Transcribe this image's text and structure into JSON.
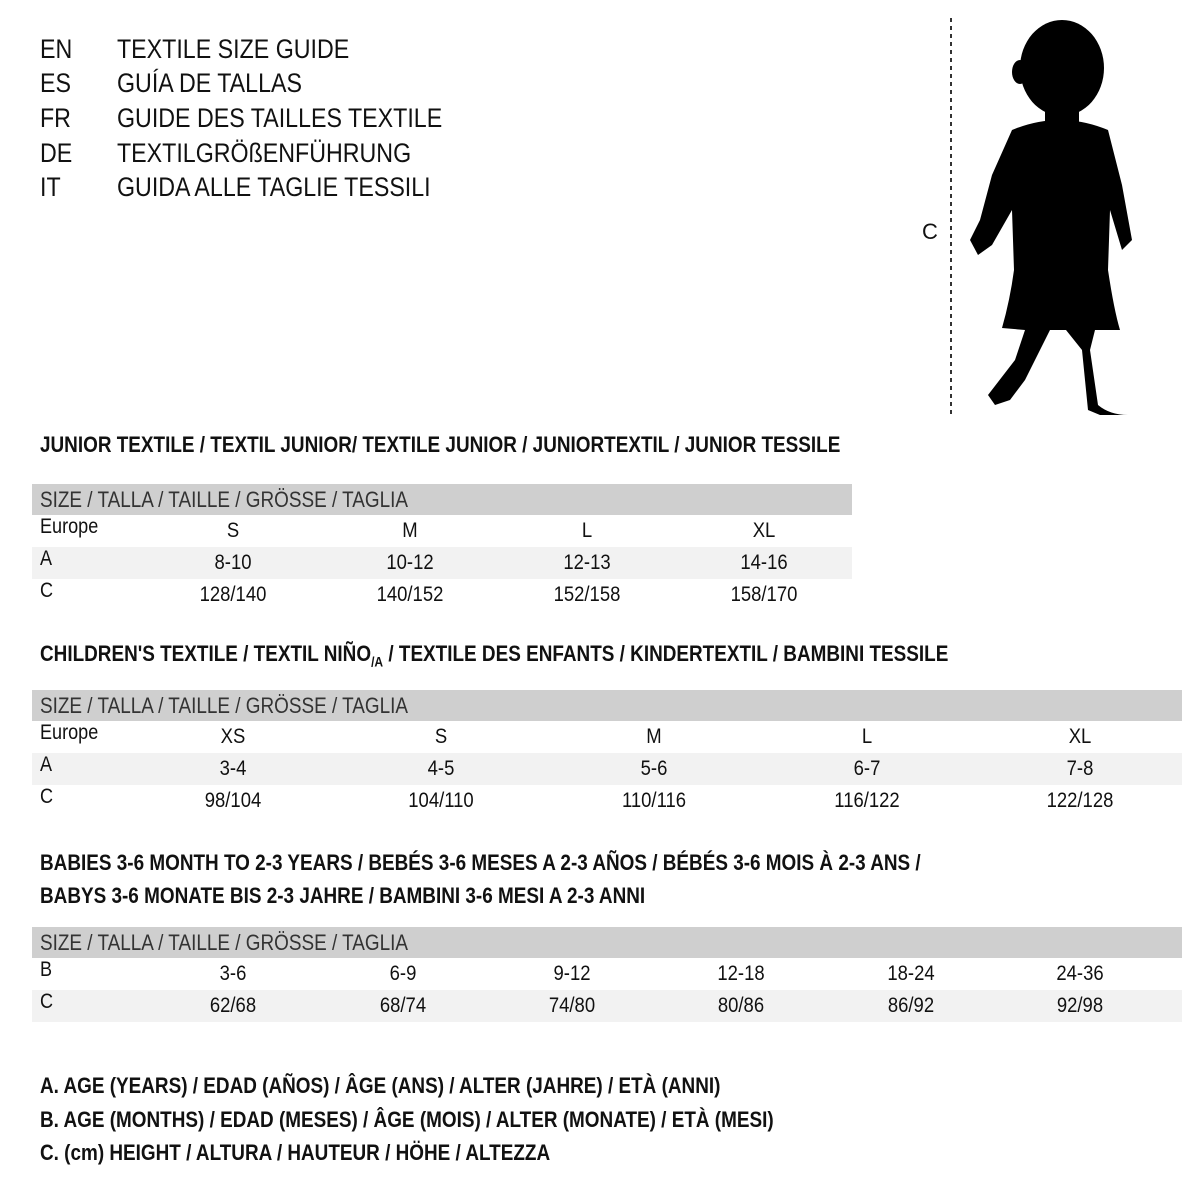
{
  "languages": [
    {
      "code": "EN",
      "title": "TEXTILE SIZE GUIDE"
    },
    {
      "code": "ES",
      "title": "GUÍA DE TALLAS"
    },
    {
      "code": "FR",
      "title": "GUIDE DES TAILLES TEXTILE"
    },
    {
      "code": "DE",
      "title": "TEXTILGRÖßENFÜHRUNG"
    },
    {
      "code": "IT",
      "title": "GUIDA ALLE TAGLIE TESSILI"
    }
  ],
  "figure": {
    "measure_label": "C"
  },
  "junior": {
    "title": "JUNIOR TEXTILE / TEXTIL JUNIOR/ TEXTILE JUNIOR / JUNIORTEXTIL / JUNIOR TESSILE",
    "header": "SIZE / TALLA / TAILLE / GRÖSSE / TAGLIA",
    "rows": [
      {
        "label": "Europe",
        "cells": [
          "S",
          "M",
          "L",
          "XL"
        ]
      },
      {
        "label": "A",
        "cells": [
          "8-10",
          "10-12",
          "12-13",
          "14-16"
        ]
      },
      {
        "label": "C",
        "cells": [
          "128/140",
          "140/152",
          "152/158",
          "158/170"
        ]
      }
    ]
  },
  "children": {
    "title_main": "CHILDREN'S TEXTILE / TEXTIL NIÑO",
    "title_sub": "/A",
    "title_rest": " / TEXTILE DES ENFANTS / KINDERTEXTIL / BAMBINI TESSILE",
    "header": "SIZE / TALLA / TAILLE / GRÖSSE / TAGLIA",
    "rows": [
      {
        "label": "Europe",
        "cells": [
          "XS",
          "S",
          "M",
          "L",
          "XL"
        ]
      },
      {
        "label": "A",
        "cells": [
          "3-4",
          "4-5",
          "5-6",
          "6-7",
          "7-8"
        ]
      },
      {
        "label": "C",
        "cells": [
          "98/104",
          "104/110",
          "110/116",
          "116/122",
          "122/128"
        ]
      }
    ]
  },
  "babies": {
    "title_line1": "BABIES 3-6 MONTH TO 2-3 YEARS / BEBÉS 3-6 MESES A 2-3 AÑOS / BÉBÉS 3-6 MOIS À 2-3 ANS /",
    "title_line2": "BABYS 3-6 MONATE BIS 2-3 JAHRE / BAMBINI 3-6 MESI A 2-3 ANNI",
    "header": "SIZE / TALLA / TAILLE / GRÖSSE / TAGLIA",
    "rows": [
      {
        "label": "B",
        "cells": [
          "3-6",
          "6-9",
          "9-12",
          "12-18",
          "18-24",
          "24-36"
        ]
      },
      {
        "label": "C",
        "cells": [
          "62/68",
          "68/74",
          "74/80",
          "80/86",
          "86/92",
          "92/98"
        ]
      }
    ]
  },
  "legend": [
    "A. AGE (YEARS) / EDAD (AÑOS) / ÂGE (ANS) / ALTER (JAHRE) / ETÀ (ANNI)",
    "B. AGE (MONTHS) / EDAD (MESES) / ÂGE (MOIS) / ALTER (MONATE) / ETÀ (MESI)",
    "C. (cm) HEIGHT / ALTURA / HAUTEUR / HÖHE / ALTEZZA"
  ],
  "colors": {
    "header_bg": "#cfcfcf",
    "row_shade": "#f2f2f2",
    "text": "#111111"
  }
}
